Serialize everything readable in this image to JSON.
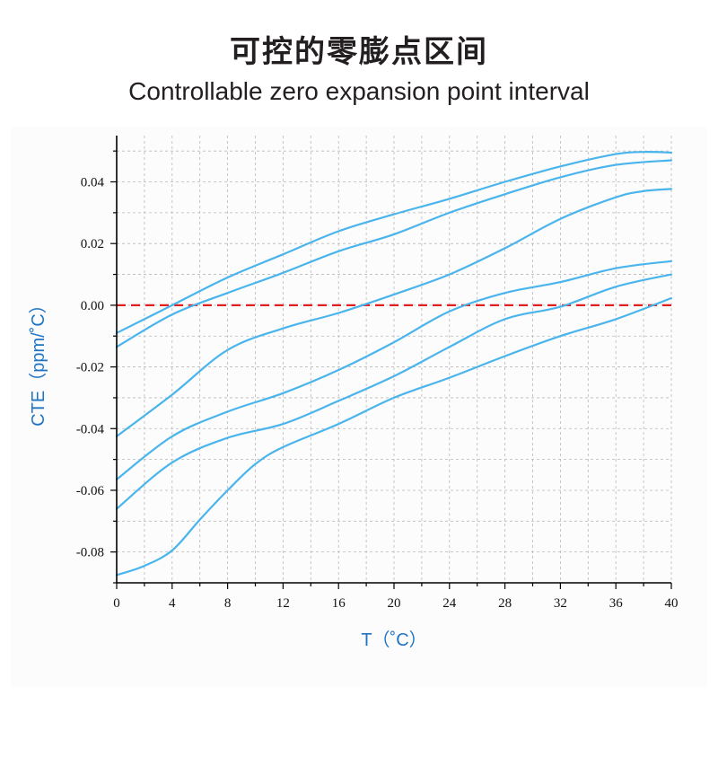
{
  "title_zh": "可控的零膨点区间",
  "title_en": "Controllable zero expansion point interval",
  "colors": {
    "series": "#4ab4ec",
    "zero_line": "#e02020",
    "axis_title": "#1f74c4",
    "grid": "#b8b8b8"
  },
  "chart_data": {
    "type": "line",
    "title": "",
    "xlabel": "T（˚C）",
    "ylabel": "CTE（ppm/˚C）",
    "xlim": [
      0,
      40
    ],
    "ylim": [
      -0.09,
      0.055
    ],
    "xticks": [
      0,
      4,
      8,
      12,
      16,
      20,
      24,
      28,
      32,
      36,
      40
    ],
    "xtick_labels": [
      "0",
      "4",
      "8",
      "12",
      "16",
      "20",
      "24",
      "28",
      "32",
      "36",
      "40"
    ],
    "yticks": [
      -0.08,
      -0.06,
      -0.04,
      -0.02,
      0.0,
      0.02,
      0.04
    ],
    "ytick_labels": [
      "-0.08",
      "-0.06",
      "-0.04",
      "-0.02",
      "0.00",
      "0.02",
      "0.04"
    ],
    "grid": true,
    "reference_line": {
      "y": 0.0,
      "style": "dashed"
    },
    "series": [
      {
        "x": [
          0,
          4,
          8,
          12,
          16,
          20,
          24,
          28,
          32,
          36,
          38,
          40
        ],
        "y": [
          -0.009,
          0.0,
          0.009,
          0.0165,
          0.024,
          0.0295,
          0.0345,
          0.04,
          0.045,
          0.049,
          0.0497,
          0.0495
        ]
      },
      {
        "x": [
          0,
          4,
          8,
          12,
          16,
          20,
          24,
          28,
          32,
          36,
          40
        ],
        "y": [
          -0.0135,
          -0.003,
          0.004,
          0.0105,
          0.0175,
          0.023,
          0.03,
          0.036,
          0.0415,
          0.0455,
          0.047
        ]
      },
      {
        "x": [
          0,
          4,
          8,
          12,
          16,
          20,
          24,
          28,
          32,
          36,
          38,
          40
        ],
        "y": [
          -0.0425,
          -0.029,
          -0.0145,
          -0.0075,
          -0.0025,
          0.0035,
          0.01,
          0.0185,
          0.028,
          0.035,
          0.037,
          0.0377
        ]
      },
      {
        "x": [
          0,
          4,
          8,
          12,
          16,
          20,
          24,
          28,
          32,
          36,
          40
        ],
        "y": [
          -0.0565,
          -0.0425,
          -0.0345,
          -0.0285,
          -0.021,
          -0.012,
          -0.002,
          0.004,
          0.0075,
          0.012,
          0.0143
        ]
      },
      {
        "x": [
          0,
          4,
          8,
          12,
          16,
          20,
          24,
          28,
          32,
          36,
          40
        ],
        "y": [
          -0.066,
          -0.051,
          -0.043,
          -0.0385,
          -0.031,
          -0.023,
          -0.0135,
          -0.0045,
          -0.0005,
          0.006,
          0.01
        ]
      },
      {
        "x": [
          0,
          2,
          4,
          6,
          8,
          10,
          12,
          16,
          20,
          24,
          28,
          32,
          36,
          40
        ],
        "y": [
          -0.0875,
          -0.0845,
          -0.0795,
          -0.0695,
          -0.06,
          -0.0515,
          -0.046,
          -0.0385,
          -0.03,
          -0.0235,
          -0.0165,
          -0.01,
          -0.0045,
          0.0023
        ]
      }
    ]
  }
}
